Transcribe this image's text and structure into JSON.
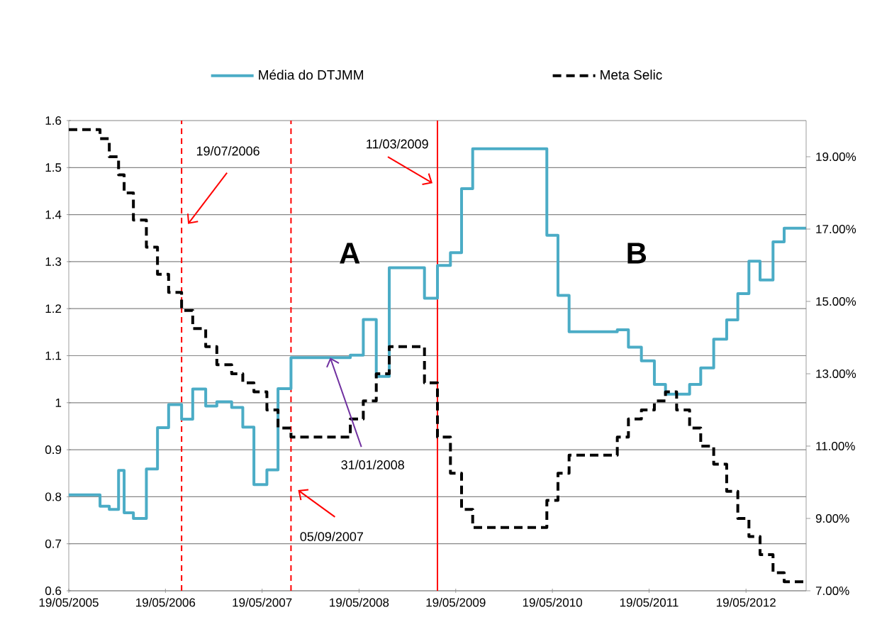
{
  "chart_data": {
    "type": "step",
    "x": [
      "2005-05-19",
      "2005-09-14",
      "2005-10-19",
      "2005-11-23",
      "2005-12-14",
      "2006-01-18",
      "2006-03-08",
      "2006-04-19",
      "2006-05-31",
      "2006-07-19",
      "2006-08-30",
      "2006-10-18",
      "2006-11-29",
      "2007-01-24",
      "2007-03-07",
      "2007-04-18",
      "2007-06-06",
      "2007-07-18",
      "2007-09-05",
      "2008-04-16",
      "2008-06-04",
      "2008-07-23",
      "2008-09-10",
      "2009-01-21",
      "2009-03-11",
      "2009-04-29",
      "2009-06-10",
      "2009-07-22",
      "2010-04-28",
      "2010-06-09",
      "2010-07-21",
      "2011-01-19",
      "2011-03-02",
      "2011-04-20",
      "2011-06-08",
      "2011-07-20",
      "2011-08-31",
      "2011-10-19",
      "2011-11-30",
      "2012-01-18",
      "2012-03-07",
      "2012-04-18",
      "2012-05-30",
      "2012-07-11",
      "2012-08-29",
      "2012-10-10",
      "2013-01-01"
    ],
    "series": [
      {
        "name": "Média do DTJMM",
        "color": "#4bacc6",
        "line_style": "solid",
        "values": [
          0.804,
          0.78,
          0.773,
          0.856,
          0.766,
          0.754,
          0.859,
          0.947,
          0.996,
          0.965,
          1.029,
          0.993,
          1.002,
          0.99,
          0.948,
          0.826,
          0.857,
          1.03,
          1.096,
          1.101,
          1.177,
          1.056,
          1.287,
          1.222,
          1.292,
          1.319,
          1.455,
          1.54,
          1.356,
          1.228,
          1.151,
          1.155,
          1.118,
          1.089,
          1.039,
          1.018,
          1.018,
          1.039,
          1.074,
          1.135,
          1.176,
          1.232,
          1.301,
          1.261,
          1.342,
          1.371,
          1.371
        ]
      },
      {
        "name": "Meta Selic",
        "color": "#000000",
        "line_style": "dashed",
        "axis": "y2",
        "values": [
          19.75,
          19.5,
          19.0,
          18.5,
          18.0,
          17.25,
          16.5,
          15.75,
          15.25,
          14.75,
          14.25,
          13.75,
          13.25,
          13.0,
          12.75,
          12.5,
          12.0,
          11.5,
          11.25,
          11.75,
          12.25,
          13.0,
          13.75,
          12.75,
          11.25,
          10.25,
          9.25,
          8.75,
          9.5,
          10.25,
          10.75,
          11.25,
          11.75,
          12.0,
          12.25,
          12.5,
          12.0,
          11.5,
          11.0,
          10.5,
          9.75,
          9.0,
          8.5,
          8.0,
          7.5,
          7.25,
          7.25
        ]
      }
    ],
    "xlim": [
      "2005-05-19",
      "2013-01-01"
    ],
    "xticks": [
      {
        "value": "2005-05-19",
        "label": "19/05/2005"
      },
      {
        "value": "2006-05-19",
        "label": "19/05/2006"
      },
      {
        "value": "2007-05-19",
        "label": "19/05/2007"
      },
      {
        "value": "2008-05-19",
        "label": "19/05/2008"
      },
      {
        "value": "2009-05-19",
        "label": "19/05/2009"
      },
      {
        "value": "2010-05-19",
        "label": "19/05/2010"
      },
      {
        "value": "2011-05-19",
        "label": "19/05/2011"
      },
      {
        "value": "2012-05-19",
        "label": "19/05/2012"
      }
    ],
    "ylim": [
      0.6,
      1.6
    ],
    "yticks": [
      0.6,
      0.7,
      0.8,
      0.9,
      1,
      1.1,
      1.2,
      1.3,
      1.4,
      1.5,
      1.6
    ],
    "y2lim": [
      7,
      20
    ],
    "y2ticks": [
      {
        "value": 7,
        "label": "7.00%"
      },
      {
        "value": 9,
        "label": "9.00%"
      },
      {
        "value": 11,
        "label": "11.00%"
      },
      {
        "value": 13,
        "label": "13.00%"
      },
      {
        "value": 15,
        "label": "15.00%"
      },
      {
        "value": 17,
        "label": "17.00%"
      },
      {
        "value": 19,
        "label": "19.00%"
      }
    ],
    "ref_lines": [
      {
        "axis": "x",
        "value": "2006-07-19",
        "label": "19/07/2006",
        "color": "#ff0000",
        "line_style": "dashed"
      },
      {
        "axis": "x",
        "value": "2007-09-05",
        "label": "05/09/2007",
        "color": "#ff0000",
        "line_style": "dashed"
      },
      {
        "axis": "x",
        "value": "2009-03-11",
        "label": "11/03/2009",
        "color": "#ff0000",
        "line_style": "solid"
      }
    ],
    "annotations": [
      "A",
      "B",
      {
        "text": "31/01/2008",
        "x": "2008-01-31",
        "y": 1.096
      }
    ],
    "grid": "y",
    "legend": "top"
  }
}
